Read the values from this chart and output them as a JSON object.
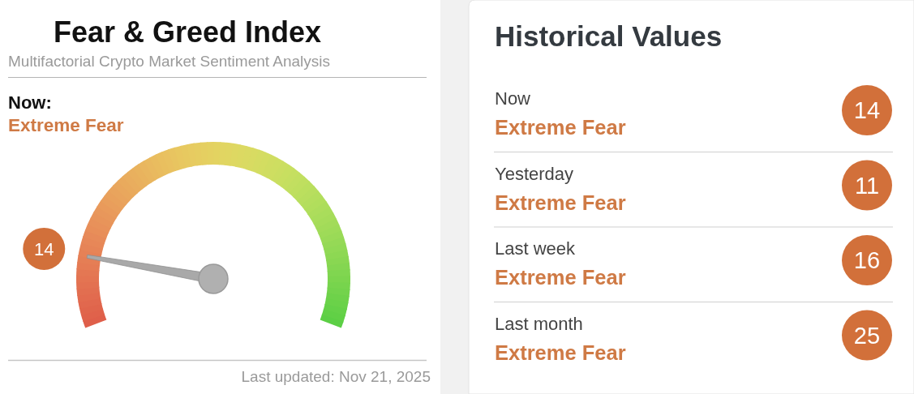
{
  "chart_data": [
    {
      "type": "other",
      "title": "Fear & Greed Index",
      "subtitle": "Multifactorial Crypto Market Sentiment Analysis",
      "values": [
        14
      ],
      "colors": [
        "#d2703a"
      ],
      "data_labels": true,
      "annotations": [
        "Now:",
        "Extreme Fear",
        "Last updated: Nov 21, 2025"
      ]
    },
    {
      "type": "other",
      "title": "Historical Values",
      "categories": [
        "Now",
        "Yesterday",
        "Last week",
        "Last month"
      ],
      "values": [
        14,
        11,
        16,
        25
      ],
      "colors": [
        "#d2703a",
        "#d2703a",
        "#d2703a",
        "#d2703a"
      ],
      "data_labels": true,
      "annotations": [
        "Extreme Fear",
        "Extreme Fear",
        "Extreme Fear",
        "Extreme Fear"
      ]
    }
  ]
}
